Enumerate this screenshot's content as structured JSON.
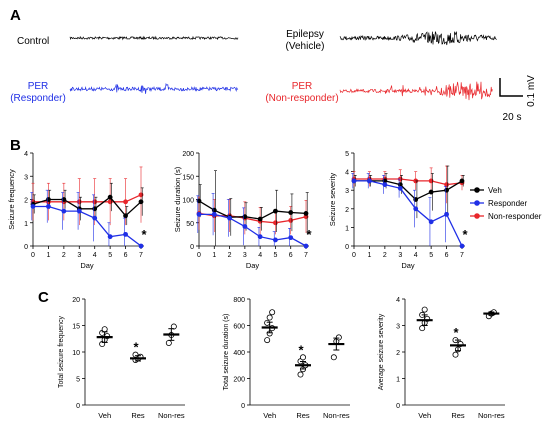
{
  "panels": {
    "a": "A",
    "b": "B",
    "c": "C"
  },
  "traces": {
    "control": "Control",
    "epilepsy_line1": "Epilepsy",
    "epilepsy_line2": "(Vehicle)",
    "responder_line1": "PER",
    "responder_line2": "(Responder)",
    "nonresponder_line1": "PER",
    "nonresponder_line2": "(Non-responder)",
    "scale_v": "0.1 mV",
    "scale_t": "20 s"
  },
  "colors": {
    "veh": "#000000",
    "responder": "#1f2fe6",
    "nonresponder": "#e8262b"
  },
  "legend": [
    {
      "key": "veh",
      "label": "Veh"
    },
    {
      "key": "responder",
      "label": "Responder"
    },
    {
      "key": "nonresponder",
      "label": "Non-responder"
    }
  ],
  "chart_data": [
    {
      "type": "line",
      "ylabel": "Seizure frequency",
      "xlabel": "Day",
      "x": [
        0,
        1,
        2,
        3,
        4,
        5,
        6,
        7
      ],
      "ylim": [
        0,
        4
      ],
      "yticks": [
        0,
        1,
        2,
        3,
        4
      ],
      "series": [
        {
          "key": "veh",
          "values": [
            1.8,
            2.0,
            2.0,
            1.6,
            1.6,
            2.1,
            1.3,
            1.9
          ],
          "err": [
            0.4,
            0.4,
            0.4,
            0.5,
            0.5,
            0.6,
            0.4,
            0.6
          ]
        },
        {
          "key": "responder",
          "values": [
            1.7,
            1.7,
            1.5,
            1.5,
            1.2,
            0.4,
            0.5,
            0.0
          ],
          "err": [
            0.6,
            0.7,
            0.8,
            0.8,
            1.0,
            0.6,
            0.7,
            0.0
          ]
        },
        {
          "key": "nonresponder",
          "values": [
            1.9,
            1.9,
            1.9,
            1.9,
            1.9,
            1.9,
            1.9,
            2.2
          ],
          "err": [
            0.8,
            0.8,
            0.8,
            1.0,
            1.0,
            1.0,
            1.0,
            1.2
          ]
        }
      ],
      "annotation": {
        "text": "*",
        "x": 7
      }
    },
    {
      "type": "line",
      "ylabel": "Seizure duration (s)",
      "xlabel": "Day",
      "x": [
        0,
        1,
        2,
        3,
        4,
        5,
        6,
        7
      ],
      "ylim": [
        0,
        200
      ],
      "yticks": [
        0,
        50,
        100,
        150,
        200
      ],
      "series": [
        {
          "key": "veh",
          "values": [
            97,
            77,
            62,
            63,
            58,
            75,
            72,
            70
          ],
          "err": [
            35,
            85,
            40,
            30,
            25,
            45,
            40,
            45
          ]
        },
        {
          "key": "responder",
          "values": [
            68,
            68,
            60,
            42,
            20,
            13,
            18,
            0
          ],
          "err": [
            40,
            45,
            40,
            40,
            20,
            18,
            20,
            0
          ]
        },
        {
          "key": "nonresponder",
          "values": [
            70,
            65,
            65,
            60,
            53,
            50,
            55,
            63
          ],
          "err": [
            35,
            35,
            35,
            35,
            30,
            25,
            30,
            35
          ]
        }
      ],
      "annotation": {
        "text": "*",
        "x": 7
      }
    },
    {
      "type": "line",
      "ylabel": "Seizure severity",
      "xlabel": "Day",
      "x": [
        0,
        1,
        2,
        3,
        4,
        5,
        6,
        7
      ],
      "ylim": [
        0,
        5
      ],
      "yticks": [
        0,
        1,
        2,
        3,
        4,
        5
      ],
      "series": [
        {
          "key": "veh",
          "values": [
            3.5,
            3.5,
            3.5,
            3.3,
            2.5,
            2.9,
            3.0,
            3.5
          ],
          "err": [
            0.3,
            0.3,
            0.4,
            0.5,
            1.0,
            1.0,
            1.3,
            0.3
          ]
        },
        {
          "key": "responder",
          "values": [
            3.5,
            3.5,
            3.3,
            3.1,
            2.0,
            1.3,
            1.7,
            0.0
          ],
          "err": [
            0.4,
            0.4,
            0.5,
            0.5,
            1.0,
            1.3,
            1.5,
            0.0
          ]
        },
        {
          "key": "nonresponder",
          "values": [
            3.6,
            3.6,
            3.6,
            3.6,
            3.5,
            3.5,
            3.3,
            3.4
          ],
          "err": [
            0.4,
            0.4,
            0.4,
            0.5,
            0.5,
            0.7,
            1.0,
            0.4
          ]
        }
      ],
      "annotation": {
        "text": "*",
        "x": 7
      }
    },
    {
      "type": "scatter",
      "ylabel": "Total seizure frequency",
      "categories": [
        "Veh",
        "Res",
        "Non-res"
      ],
      "ylim": [
        0,
        20
      ],
      "yticks": [
        0,
        5,
        10,
        15,
        20
      ],
      "means": [
        12.8,
        8.8,
        13.3
      ],
      "sem": [
        1.0,
        0.5,
        1.1
      ],
      "points": [
        [
          11.5,
          12.3,
          13.0,
          13.6,
          14.3
        ],
        [
          8.5,
          8.8,
          9.1,
          9.5
        ],
        [
          11.7,
          13.2,
          14.8
        ]
      ],
      "sig": [
        false,
        true,
        false
      ]
    },
    {
      "type": "scatter",
      "ylabel": "Total seizure duration (s)",
      "categories": [
        "Veh",
        "Res",
        "Non-res"
      ],
      "ylim": [
        0,
        800
      ],
      "yticks": [
        0,
        200,
        400,
        600,
        800
      ],
      "means": [
        585,
        300,
        460
      ],
      "sem": [
        40,
        28,
        45
      ],
      "points": [
        [
          490,
          540,
          580,
          620,
          660,
          700
        ],
        [
          230,
          270,
          300,
          330,
          360
        ],
        [
          360,
          480,
          510
        ]
      ],
      "sig": [
        false,
        true,
        false
      ]
    },
    {
      "type": "scatter",
      "ylabel": "Average seizure severity",
      "categories": [
        "Veh",
        "Res",
        "Non-res"
      ],
      "ylim": [
        0,
        4
      ],
      "yticks": [
        0,
        1,
        2,
        3,
        4
      ],
      "means": [
        3.2,
        2.25,
        3.45
      ],
      "sem": [
        0.2,
        0.2,
        0.06
      ],
      "points": [
        [
          2.9,
          3.1,
          3.25,
          3.4,
          3.6
        ],
        [
          1.9,
          2.1,
          2.3,
          2.45
        ],
        [
          3.35,
          3.45,
          3.5
        ]
      ],
      "sig": [
        false,
        true,
        false
      ]
    }
  ]
}
